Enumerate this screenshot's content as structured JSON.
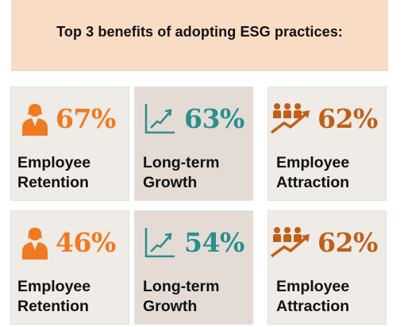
{
  "header": {
    "title": "Top 3 benefits of adopting ESG practices:"
  },
  "colors": {
    "orange": "#ef7a22",
    "teal": "#2a8f8f",
    "brown": "#c05f18",
    "header_bg": "#f8dcc4"
  },
  "rows": [
    {
      "cards": [
        {
          "icon": "person-icon",
          "value": "67%",
          "line1": "Employee",
          "line2": "Retention"
        },
        {
          "icon": "growth-chart-icon",
          "value": "63%",
          "line1": "Long-term",
          "line2": "Growth"
        },
        {
          "icon": "group-arrow-icon",
          "value": "62%",
          "line1": "Employee",
          "line2": "Attraction"
        }
      ]
    },
    {
      "cards": [
        {
          "icon": "person-icon",
          "value": "46%",
          "line1": "Employee",
          "line2": "Retention"
        },
        {
          "icon": "growth-chart-icon",
          "value": "54%",
          "line1": "Long-term",
          "line2": "Growth"
        },
        {
          "icon": "group-arrow-icon",
          "value": "62%",
          "line1": "Employee",
          "line2": "Attraction"
        }
      ]
    }
  ]
}
